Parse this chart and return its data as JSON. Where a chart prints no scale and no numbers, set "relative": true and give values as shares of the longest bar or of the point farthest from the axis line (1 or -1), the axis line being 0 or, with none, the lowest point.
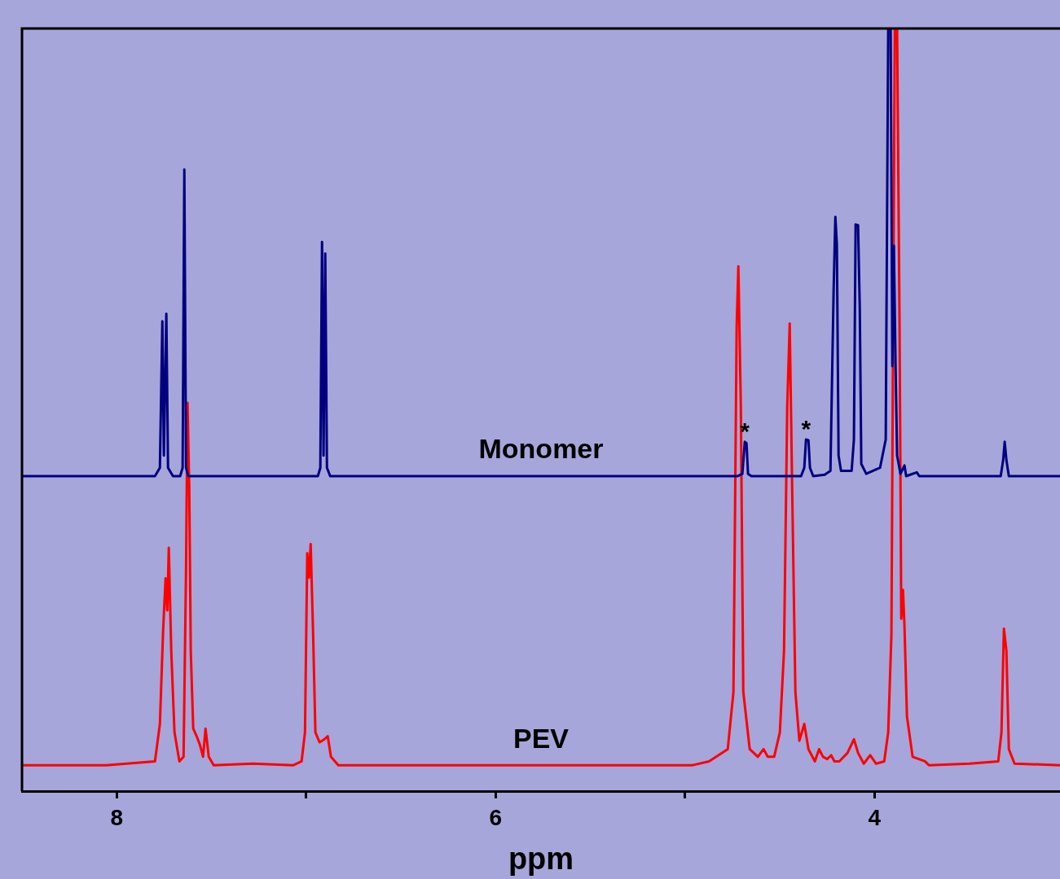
{
  "chart_data": {
    "type": "line",
    "relative": true,
    "xlabel": "ppm",
    "xlim": [
      8.5,
      3.02
    ],
    "xticks": [
      8,
      {
        "value": 7,
        "label": null
      },
      6,
      {
        "value": 5,
        "label": null
      },
      4
    ],
    "grid": false,
    "legend": false,
    "marker": "none",
    "line_style": "solid",
    "annotations": [
      {
        "text": "*",
        "x": 4.684,
        "y": 0.458
      },
      {
        "text": "*",
        "x": 4.361,
        "y": 0.461
      }
    ],
    "series": [
      {
        "name": "Monomer",
        "color": "#000080",
        "x": [
          8.5,
          7.798,
          7.772,
          7.759,
          7.751,
          7.738,
          7.729,
          7.703,
          7.665,
          7.652,
          7.643,
          7.634,
          7.622,
          6.938,
          6.925,
          6.916,
          6.908,
          6.899,
          6.89,
          6.873,
          4.723,
          4.697,
          4.684,
          4.675,
          4.667,
          4.649,
          4.387,
          4.37,
          4.361,
          4.348,
          4.34,
          4.323,
          4.262,
          4.232,
          4.215,
          4.206,
          4.198,
          4.189,
          4.176,
          4.12,
          4.108,
          4.099,
          4.086,
          4.077,
          4.069,
          4.043,
          3.97,
          3.94,
          3.927,
          3.914,
          3.905,
          3.897,
          3.888,
          3.88,
          3.862,
          3.841,
          3.832,
          3.776,
          3.763,
          3.333,
          3.32,
          3.312,
          3.303,
          3.29,
          3.02
        ],
        "values": [
          0.413,
          0.413,
          0.424,
          0.616,
          0.44,
          0.626,
          0.424,
          0.413,
          0.413,
          0.424,
          0.815,
          0.424,
          0.413,
          0.413,
          0.424,
          0.72,
          0.44,
          0.705,
          0.424,
          0.413,
          0.413,
          0.416,
          0.458,
          0.456,
          0.416,
          0.413,
          0.413,
          0.424,
          0.461,
          0.46,
          0.424,
          0.413,
          0.415,
          0.42,
          0.658,
          0.753,
          0.717,
          0.44,
          0.42,
          0.42,
          0.461,
          0.743,
          0.742,
          0.632,
          0.429,
          0.416,
          0.424,
          0.461,
          1,
          1,
          0.557,
          0.715,
          0.557,
          0.44,
          0.416,
          0.427,
          0.413,
          0.418,
          0.413,
          0.413,
          0.434,
          0.458,
          0.434,
          0.413,
          0.413
        ]
      },
      {
        "name": "PEV",
        "color": "#ff0000",
        "x": [
          8.5,
          8.056,
          7.798,
          7.772,
          7.755,
          7.742,
          7.733,
          7.725,
          7.712,
          7.695,
          7.669,
          7.647,
          7.634,
          7.626,
          7.617,
          7.609,
          7.596,
          7.578,
          7.561,
          7.544,
          7.531,
          7.514,
          7.488,
          7.282,
          7.067,
          7.024,
          7.006,
          6.994,
          6.985,
          6.976,
          6.963,
          6.951,
          6.929,
          6.903,
          6.886,
          6.869,
          6.83,
          4.959,
          4.873,
          4.774,
          4.744,
          4.727,
          4.718,
          4.705,
          4.692,
          4.658,
          4.615,
          4.585,
          4.563,
          4.529,
          4.499,
          4.477,
          4.46,
          4.447,
          4.434,
          4.417,
          4.396,
          4.37,
          4.348,
          4.314,
          4.292,
          4.271,
          4.249,
          4.228,
          4.211,
          4.185,
          4.142,
          4.108,
          4.086,
          4.056,
          4.022,
          3.991,
          3.948,
          3.927,
          3.91,
          3.892,
          3.88,
          3.867,
          3.858,
          3.849,
          3.841,
          3.828,
          3.798,
          3.733,
          3.712,
          3.497,
          3.346,
          3.329,
          3.316,
          3.303,
          3.29,
          3.26,
          3.02
        ],
        "values": [
          0.034,
          0.034,
          0.039,
          0.088,
          0.21,
          0.279,
          0.237,
          0.319,
          0.184,
          0.077,
          0.039,
          0.045,
          0.29,
          0.509,
          0.397,
          0.184,
          0.082,
          0.072,
          0.061,
          0.045,
          0.082,
          0.045,
          0.034,
          0.036,
          0.034,
          0.039,
          0.077,
          0.312,
          0.28,
          0.324,
          0.205,
          0.077,
          0.064,
          0.068,
          0.072,
          0.045,
          0.034,
          0.034,
          0.039,
          0.055,
          0.13,
          0.61,
          0.688,
          0.504,
          0.13,
          0.055,
          0.045,
          0.055,
          0.045,
          0.045,
          0.077,
          0.184,
          0.504,
          0.613,
          0.397,
          0.13,
          0.066,
          0.088,
          0.055,
          0.039,
          0.055,
          0.045,
          0.042,
          0.047,
          0.039,
          0.039,
          0.05,
          0.068,
          0.05,
          0.036,
          0.047,
          0.036,
          0.039,
          0.077,
          0.205,
          1,
          1,
          0.61,
          0.226,
          0.264,
          0.216,
          0.098,
          0.045,
          0.039,
          0.034,
          0.036,
          0.039,
          0.077,
          0.213,
          0.184,
          0.055,
          0.036,
          0.034
        ]
      }
    ]
  }
}
